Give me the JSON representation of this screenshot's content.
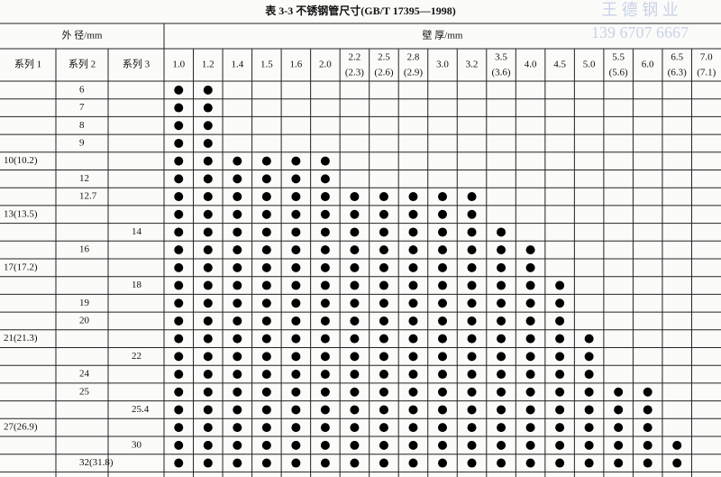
{
  "header": {
    "title": "表 3-3  不锈钢管尺寸(GB/T 17395—1998)",
    "watermark": [
      "王 德 钢 业",
      "139 6707 6667"
    ]
  },
  "table": {
    "outer_diameter_label": "外    径/mm",
    "wall_thickness_label": "壁    厚/mm",
    "series_labels": [
      "系列 1",
      "系列 2",
      "系列 3"
    ],
    "thickness": [
      {
        "main": "1.0"
      },
      {
        "main": "1.2"
      },
      {
        "main": "1.4"
      },
      {
        "main": "1.5"
      },
      {
        "main": "1.6"
      },
      {
        "main": "2.0"
      },
      {
        "main": "2.2",
        "alt": "(2.3)"
      },
      {
        "main": "2.5",
        "alt": "(2.6)"
      },
      {
        "main": "2.8",
        "alt": "(2.9)"
      },
      {
        "main": "3.0"
      },
      {
        "main": "3.2"
      },
      {
        "main": "3.5",
        "alt": "(3.6)"
      },
      {
        "main": "4.0"
      },
      {
        "main": "4.5"
      },
      {
        "main": "5.0"
      },
      {
        "main": "5.5",
        "alt": "(5.6)"
      },
      {
        "main": "6.0"
      },
      {
        "main": "6.5",
        "alt": "(6.3)"
      },
      {
        "main": "7.0",
        "alt": "(7.1)"
      }
    ],
    "rows": [
      {
        "series2": "6",
        "marks": [
          true,
          true,
          false,
          false,
          false,
          false,
          false,
          false,
          false,
          false,
          false,
          false,
          false,
          false,
          false,
          false,
          false,
          false,
          false
        ]
      },
      {
        "series2": "7",
        "marks": [
          true,
          true,
          false,
          false,
          false,
          false,
          false,
          false,
          false,
          false,
          false,
          false,
          false,
          false,
          false,
          false,
          false,
          false,
          false
        ]
      },
      {
        "series2": "8",
        "marks": [
          true,
          true,
          false,
          false,
          false,
          false,
          false,
          false,
          false,
          false,
          false,
          false,
          false,
          false,
          false,
          false,
          false,
          false,
          false
        ]
      },
      {
        "series2": "9",
        "marks": [
          true,
          true,
          false,
          false,
          false,
          false,
          false,
          false,
          false,
          false,
          false,
          false,
          false,
          false,
          false,
          false,
          false,
          false,
          false
        ]
      },
      {
        "series1": "10(10.2)",
        "marks": [
          true,
          true,
          true,
          true,
          true,
          true,
          false,
          false,
          false,
          false,
          false,
          false,
          false,
          false,
          false,
          false,
          false,
          false,
          false
        ]
      },
      {
        "series2": "12",
        "marks": [
          true,
          true,
          true,
          true,
          true,
          true,
          false,
          false,
          false,
          false,
          false,
          false,
          false,
          false,
          false,
          false,
          false,
          false,
          false
        ]
      },
      {
        "series2": "12.7",
        "marks": [
          true,
          true,
          true,
          true,
          true,
          true,
          true,
          true,
          true,
          true,
          true,
          false,
          false,
          false,
          false,
          false,
          false,
          false,
          false
        ]
      },
      {
        "series1": "13(13.5)",
        "marks": [
          true,
          true,
          true,
          true,
          true,
          true,
          true,
          true,
          true,
          true,
          true,
          false,
          false,
          false,
          false,
          false,
          false,
          false,
          false
        ]
      },
      {
        "series3": "14",
        "marks": [
          true,
          true,
          true,
          true,
          true,
          true,
          true,
          true,
          true,
          true,
          true,
          true,
          false,
          false,
          false,
          false,
          false,
          false,
          false
        ]
      },
      {
        "series2": "16",
        "marks": [
          true,
          true,
          true,
          true,
          true,
          true,
          true,
          true,
          true,
          true,
          true,
          true,
          true,
          false,
          false,
          false,
          false,
          false,
          false
        ]
      },
      {
        "series1": "17(17.2)",
        "marks": [
          true,
          true,
          true,
          true,
          true,
          true,
          true,
          true,
          true,
          true,
          true,
          true,
          true,
          false,
          false,
          false,
          false,
          false,
          false
        ]
      },
      {
        "series3": "18",
        "marks": [
          true,
          true,
          true,
          true,
          true,
          true,
          true,
          true,
          true,
          true,
          true,
          true,
          true,
          true,
          false,
          false,
          false,
          false,
          false
        ]
      },
      {
        "series2": "19",
        "marks": [
          true,
          true,
          true,
          true,
          true,
          true,
          true,
          true,
          true,
          true,
          true,
          true,
          true,
          true,
          false,
          false,
          false,
          false,
          false
        ]
      },
      {
        "series2": "20",
        "marks": [
          true,
          true,
          true,
          true,
          true,
          true,
          true,
          true,
          true,
          true,
          true,
          true,
          true,
          true,
          false,
          false,
          false,
          false,
          false
        ]
      },
      {
        "series1": "21(21.3)",
        "marks": [
          true,
          true,
          true,
          true,
          true,
          true,
          true,
          true,
          true,
          true,
          true,
          true,
          true,
          true,
          true,
          false,
          false,
          false,
          false
        ]
      },
      {
        "series3": "22",
        "marks": [
          true,
          true,
          true,
          true,
          true,
          true,
          true,
          true,
          true,
          true,
          true,
          true,
          true,
          true,
          true,
          false,
          false,
          false,
          false
        ]
      },
      {
        "series2": "24",
        "marks": [
          true,
          true,
          true,
          true,
          true,
          true,
          true,
          true,
          true,
          true,
          true,
          true,
          true,
          true,
          true,
          false,
          false,
          false,
          false
        ]
      },
      {
        "series2": "25",
        "marks": [
          true,
          true,
          true,
          true,
          true,
          true,
          true,
          true,
          true,
          true,
          true,
          true,
          true,
          true,
          true,
          true,
          true,
          false,
          false
        ]
      },
      {
        "series3": "25.4",
        "marks": [
          true,
          true,
          true,
          true,
          true,
          true,
          true,
          true,
          true,
          true,
          true,
          true,
          true,
          true,
          true,
          true,
          true,
          false,
          false
        ]
      },
      {
        "series1": "27(26.9)",
        "marks": [
          true,
          true,
          true,
          true,
          true,
          true,
          true,
          true,
          true,
          true,
          true,
          true,
          true,
          true,
          true,
          true,
          true,
          false,
          false
        ]
      },
      {
        "series3": "30",
        "marks": [
          true,
          true,
          true,
          true,
          true,
          true,
          true,
          true,
          true,
          true,
          true,
          true,
          true,
          true,
          true,
          true,
          true,
          true,
          false
        ]
      },
      {
        "series2": "32(31.8)",
        "marks": [
          true,
          true,
          true,
          true,
          true,
          true,
          true,
          true,
          true,
          true,
          true,
          true,
          true,
          true,
          true,
          true,
          true,
          true,
          false
        ]
      }
    ]
  }
}
